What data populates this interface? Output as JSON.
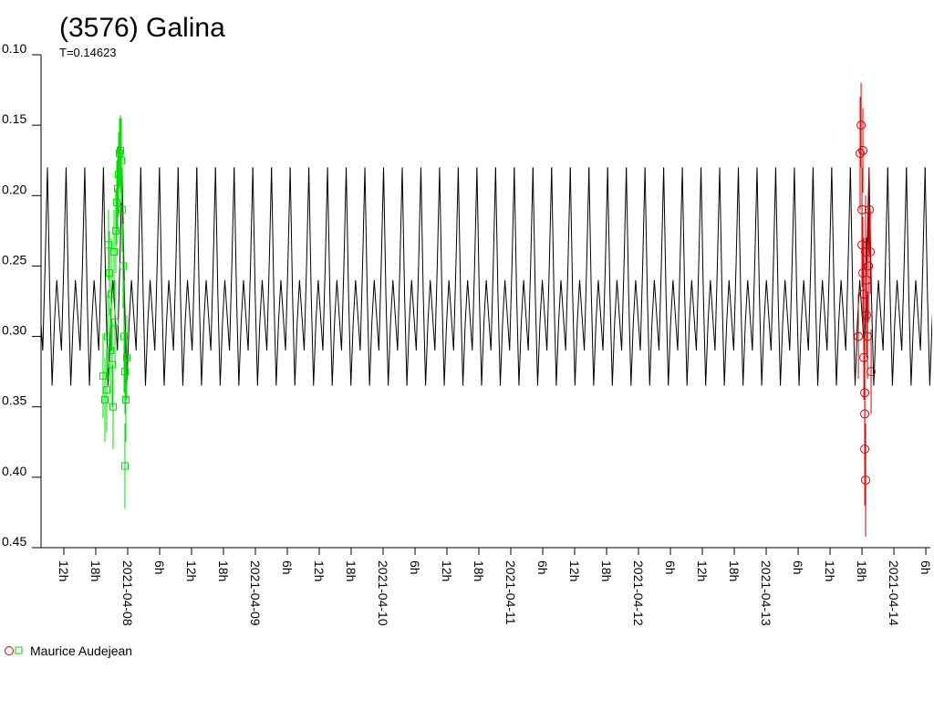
{
  "chart_data": {
    "type": "lightcurve",
    "title": "(3576) Galina",
    "period": {
      "value": 0.14623,
      "label": "T=0.14623"
    },
    "legend": "Maurice Audejean",
    "ylim": [
      0.1,
      0.45
    ],
    "inverted_y": true,
    "yticks": [
      {
        "value": 0.1,
        "label": "0.10"
      },
      {
        "value": 0.15,
        "label": "0.15"
      },
      {
        "value": 0.2,
        "label": "0.20"
      },
      {
        "value": 0.25,
        "label": "0.25"
      },
      {
        "value": 0.3,
        "label": "0.30"
      },
      {
        "value": 0.35,
        "label": "0.35"
      },
      {
        "value": 0.4,
        "label": "0.40"
      },
      {
        "value": 0.45,
        "label": "0.45"
      }
    ],
    "xlim": [
      "2021-04-07T07:43",
      "2021-04-14T06:51"
    ],
    "xticks": [
      {
        "value": "2021-04-07T12:00",
        "label": "12h"
      },
      {
        "value": "2021-04-07T18:00",
        "label": "18h"
      },
      {
        "value": "2021-04-08T00:00",
        "label": "2021-04-08"
      },
      {
        "value": "2021-04-08T06:00",
        "label": "6h"
      },
      {
        "value": "2021-04-08T12:00",
        "label": "12h"
      },
      {
        "value": "2021-04-08T18:00",
        "label": "18h"
      },
      {
        "value": "2021-04-09T00:00",
        "label": "2021-04-09"
      },
      {
        "value": "2021-04-09T06:00",
        "label": "6h"
      },
      {
        "value": "2021-04-09T12:00",
        "label": "12h"
      },
      {
        "value": "2021-04-09T18:00",
        "label": "18h"
      },
      {
        "value": "2021-04-10T00:00",
        "label": "2021-04-10"
      },
      {
        "value": "2021-04-10T06:00",
        "label": "6h"
      },
      {
        "value": "2021-04-10T12:00",
        "label": "12h"
      },
      {
        "value": "2021-04-10T18:00",
        "label": "18h"
      },
      {
        "value": "2021-04-11T00:00",
        "label": "2021-04-11"
      },
      {
        "value": "2021-04-11T06:00",
        "label": "6h"
      },
      {
        "value": "2021-04-11T12:00",
        "label": "12h"
      },
      {
        "value": "2021-04-11T18:00",
        "label": "18h"
      },
      {
        "value": "2021-04-12T00:00",
        "label": "2021-04-12"
      },
      {
        "value": "2021-04-12T06:00",
        "label": "6h"
      },
      {
        "value": "2021-04-12T12:00",
        "label": "12h"
      },
      {
        "value": "2021-04-12T18:00",
        "label": "18h"
      },
      {
        "value": "2021-04-13T00:00",
        "label": "2021-04-13"
      },
      {
        "value": "2021-04-13T06:00",
        "label": "6h"
      },
      {
        "value": "2021-04-13T12:00",
        "label": "12h"
      },
      {
        "value": "2021-04-13T18:00",
        "label": "18h"
      },
      {
        "value": "2021-04-14T00:00",
        "label": "2021-04-14"
      },
      {
        "value": "2021-04-14T06:00",
        "label": "6h"
      }
    ],
    "model": {
      "color": "#000000",
      "start": "2021-04-07T08:55",
      "phase": [
        0,
        0.125,
        0.25,
        0.375,
        0.5,
        0.625,
        0.75,
        0.875,
        1
      ],
      "values": [
        0.18,
        0.27,
        0.335,
        0.29,
        0.26,
        0.285,
        0.31,
        0.25,
        0.18
      ]
    },
    "series": [
      {
        "marker": "square",
        "color": "#00dd00",
        "x": [
          "2021-04-07T19:22",
          "2021-04-07T19:43",
          "2021-04-07T20:03",
          "2021-04-07T20:14",
          "2021-04-07T20:24",
          "2021-04-07T20:34",
          "2021-04-07T20:45",
          "2021-04-07T20:55",
          "2021-04-07T21:05",
          "2021-04-07T21:15",
          "2021-04-07T21:26",
          "2021-04-07T21:36",
          "2021-04-07T21:46",
          "2021-04-07T21:57",
          "2021-04-07T22:07",
          "2021-04-07T22:17",
          "2021-04-07T22:27",
          "2021-04-07T22:38",
          "2021-04-07T22:48",
          "2021-04-07T22:58",
          "2021-04-07T23:09",
          "2021-04-07T23:19",
          "2021-04-07T23:29",
          "2021-04-07T23:29",
          "2021-04-07T23:39",
          "2021-04-07T23:50"
        ],
        "values": [
          0.328,
          0.345,
          0.338,
          0.3,
          0.235,
          0.255,
          0.31,
          0.27,
          0.32,
          0.35,
          0.24,
          0.29,
          0.225,
          0.205,
          0.195,
          0.185,
          0.17,
          0.168,
          0.175,
          0.21,
          0.25,
          0.3,
          0.325,
          0.392,
          0.345,
          0.315
        ],
        "errors": [
          0.03,
          0.03,
          0.03,
          0.03,
          0.025,
          0.03,
          0.03,
          0.04,
          0.03,
          0.03,
          0.03,
          0.03,
          0.03,
          0.03,
          0.03,
          0.03,
          0.025,
          0.025,
          0.03,
          0.03,
          0.03,
          0.04,
          0.03,
          0.03,
          0.03,
          0.03
        ]
      },
      {
        "marker": "circle",
        "color": "#dd0000",
        "x": [
          "2021-04-13T17:19",
          "2021-04-13T17:39",
          "2021-04-13T17:50",
          "2021-04-13T18:00",
          "2021-04-13T18:00",
          "2021-04-13T18:10",
          "2021-04-13T18:10",
          "2021-04-13T18:21",
          "2021-04-13T18:21",
          "2021-04-13T18:31",
          "2021-04-13T18:31",
          "2021-04-13T18:31",
          "2021-04-13T18:41",
          "2021-04-13T18:41",
          "2021-04-13T18:51",
          "2021-04-13T18:51",
          "2021-04-13T19:02",
          "2021-04-13T19:12",
          "2021-04-13T19:22",
          "2021-04-13T19:33",
          "2021-04-13T19:43"
        ],
        "values": [
          0.3,
          0.17,
          0.15,
          0.21,
          0.235,
          0.168,
          0.255,
          0.27,
          0.315,
          0.34,
          0.355,
          0.38,
          0.402,
          0.24,
          0.26,
          0.285,
          0.3,
          0.25,
          0.21,
          0.24,
          0.325
        ],
        "errors": [
          0.03,
          0.04,
          0.03,
          0.03,
          0.03,
          0.03,
          0.04,
          0.04,
          0.03,
          0.04,
          0.04,
          0.04,
          0.04,
          0.04,
          0.03,
          0.03,
          0.03,
          0.04,
          0.03,
          0.03,
          0.03
        ]
      }
    ]
  }
}
